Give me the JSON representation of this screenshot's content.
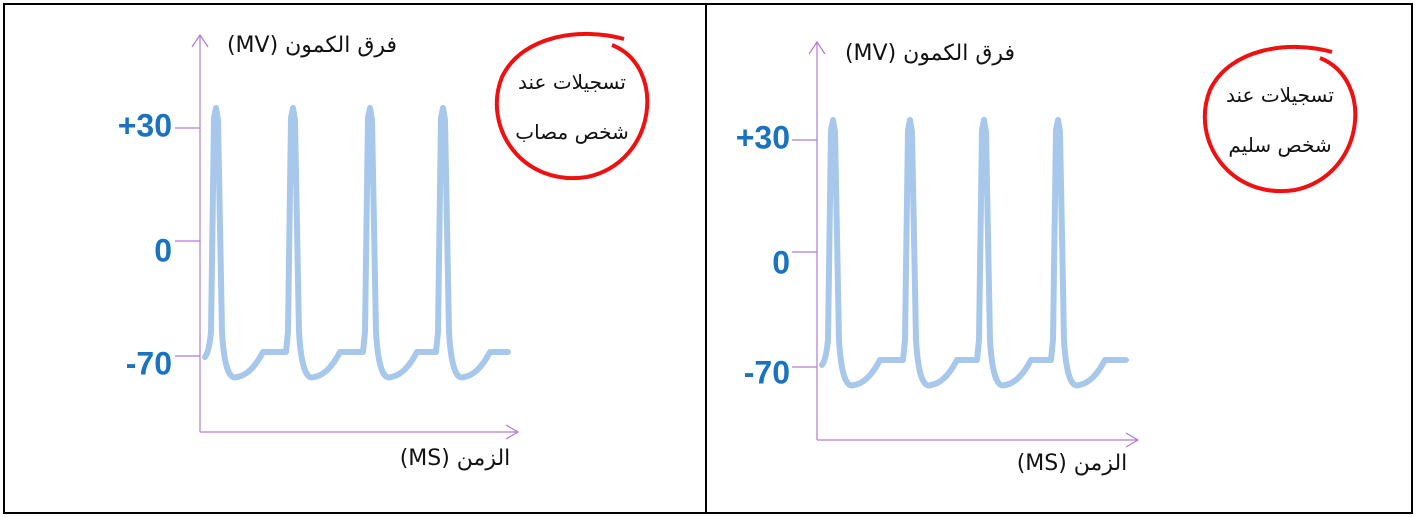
{
  "panels": [
    {
      "y_axis_label": "فرق الكمون (MV)",
      "x_axis_label": "الزمن (MS)",
      "ticks": [
        "+30",
        "0",
        "-70"
      ],
      "note": [
        "تسجيلات عند",
        "شخص مصاب"
      ]
    },
    {
      "y_axis_label": "فرق الكمون (MV)",
      "x_axis_label": "الزمن (MS)",
      "ticks": [
        "+30",
        "0",
        "-70"
      ],
      "note": [
        "تسجيلات عند",
        "شخص سليم"
      ]
    }
  ]
}
